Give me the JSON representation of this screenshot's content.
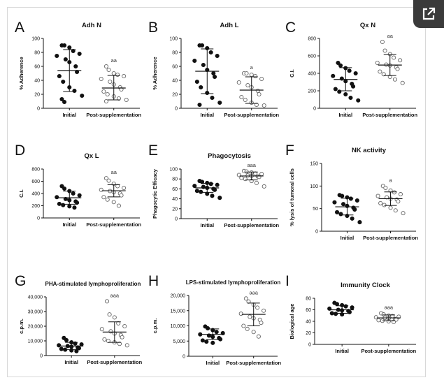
{
  "ui": {
    "external_icon": "external-link-icon"
  },
  "chart_data": [
    {
      "type": "scatter",
      "letter": "A",
      "title": "Adh N",
      "ylabel": "% Adherence",
      "ylim": [
        0,
        100
      ],
      "yticks": [
        "0",
        "20",
        "40",
        "60",
        "80",
        "100"
      ],
      "categories": [
        "Initial",
        "Post-supplementation"
      ],
      "annotation": "aa",
      "groups": [
        {
          "name": "Initial",
          "filled": true,
          "mean": 54,
          "sd_low": 24,
          "sd_high": 84,
          "values": [
            90,
            90,
            87,
            82,
            78,
            75,
            70,
            66,
            60,
            52,
            46,
            38,
            30,
            25,
            18,
            13,
            9
          ]
        },
        {
          "name": "Post-supplementation",
          "filled": false,
          "mean": 29,
          "sd_low": 12,
          "sd_high": 47,
          "values": [
            60,
            55,
            50,
            48,
            46,
            42,
            38,
            34,
            30,
            27,
            24,
            20,
            17,
            14,
            12,
            10
          ]
        }
      ]
    },
    {
      "type": "scatter",
      "letter": "B",
      "title": "Adh L",
      "ylabel": "% Adherence",
      "ylim": [
        0,
        100
      ],
      "yticks": [
        "0",
        "20",
        "40",
        "60",
        "80",
        "100"
      ],
      "categories": [
        "Initial",
        "Post-supplementation"
      ],
      "annotation": "a",
      "groups": [
        {
          "name": "Initial",
          "filled": true,
          "mean": 53,
          "sd_low": 21,
          "sd_high": 85,
          "values": [
            90,
            90,
            86,
            80,
            75,
            68,
            62,
            55,
            50,
            45,
            38,
            30,
            22,
            15,
            8,
            5
          ]
        },
        {
          "name": "Post-supplementation",
          "filled": false,
          "mean": 26,
          "sd_low": 7,
          "sd_high": 45,
          "values": [
            50,
            50,
            48,
            46,
            42,
            37,
            33,
            30,
            25,
            20,
            16,
            12,
            8,
            5,
            4
          ]
        }
      ]
    },
    {
      "type": "scatter",
      "letter": "C",
      "title": "Qx N",
      "ylabel": "C.I.",
      "ylim": [
        0,
        800
      ],
      "yticks": [
        "0",
        "200",
        "400",
        "600",
        "800"
      ],
      "categories": [
        "Initial",
        "Post-supplementation"
      ],
      "annotation": "aa",
      "groups": [
        {
          "name": "Initial",
          "filled": true,
          "mean": 330,
          "sd_low": 200,
          "sd_high": 465,
          "values": [
            520,
            490,
            460,
            430,
            400,
            370,
            340,
            310,
            280,
            250,
            220,
            190,
            160,
            120,
            90
          ]
        },
        {
          "name": "Post-supplementation",
          "filled": false,
          "mean": 495,
          "sd_low": 375,
          "sd_high": 615,
          "values": [
            760,
            660,
            620,
            580,
            550,
            520,
            500,
            490,
            470,
            450,
            420,
            390,
            360,
            330,
            290
          ]
        }
      ]
    },
    {
      "type": "scatter",
      "letter": "D",
      "title": "Qx L",
      "ylabel": "C.I.",
      "ylim": [
        0,
        800
      ],
      "yticks": [
        "0",
        "200",
        "400",
        "600",
        "800"
      ],
      "categories": [
        "Initial",
        "Post-supplementation"
      ],
      "annotation": "aa",
      "groups": [
        {
          "name": "Initial",
          "filled": true,
          "mean": 330,
          "sd_low": 225,
          "sd_high": 440,
          "values": [
            520,
            480,
            440,
            400,
            370,
            340,
            310,
            290,
            270,
            250,
            230,
            210,
            190,
            170
          ]
        },
        {
          "name": "Post-supplementation",
          "filled": false,
          "mean": 445,
          "sd_low": 345,
          "sd_high": 545,
          "values": [
            650,
            610,
            560,
            520,
            490,
            460,
            440,
            420,
            400,
            370,
            340,
            300,
            260,
            200
          ]
        }
      ]
    },
    {
      "type": "scatter",
      "letter": "E",
      "title": "Phagocytosis",
      "ylabel": "Phagocytic Efficacy",
      "ylim": [
        0,
        100
      ],
      "yticks": [
        "0",
        "20",
        "40",
        "60",
        "80",
        "100"
      ],
      "categories": [
        "Initial",
        "Post-supplementation"
      ],
      "annotation": "aaa",
      "groups": [
        {
          "name": "Initial",
          "filled": true,
          "mean": 62,
          "sd_low": 53,
          "sd_high": 71,
          "values": [
            76,
            74,
            72,
            70,
            68,
            66,
            64,
            62,
            60,
            58,
            56,
            54,
            50,
            46,
            42
          ]
        },
        {
          "name": "Post-supplementation",
          "filled": false,
          "mean": 86,
          "sd_low": 78,
          "sd_high": 94,
          "values": [
            96,
            95,
            93,
            91,
            90,
            88,
            87,
            86,
            85,
            84,
            82,
            80,
            76,
            72,
            65
          ]
        }
      ]
    },
    {
      "type": "scatter",
      "letter": "F",
      "title": "NK activity",
      "ylabel": "% lysis of tumoral cells",
      "ylim": [
        0,
        150
      ],
      "yticks": [
        "0",
        "50",
        "100",
        "150"
      ],
      "categories": [
        "Initial",
        "Post-supplementation"
      ],
      "annotation": "a",
      "groups": [
        {
          "name": "Initial",
          "filled": true,
          "mean": 54,
          "sd_low": 36,
          "sd_high": 73,
          "values": [
            80,
            78,
            75,
            72,
            68,
            64,
            60,
            56,
            52,
            48,
            42,
            38,
            34,
            28,
            20
          ]
        },
        {
          "name": "Post-supplementation",
          "filled": false,
          "mean": 72,
          "sd_low": 57,
          "sd_high": 87,
          "values": [
            100,
            96,
            90,
            86,
            82,
            78,
            75,
            72,
            70,
            66,
            62,
            58,
            52,
            46,
            40
          ]
        }
      ]
    },
    {
      "type": "scatter",
      "letter": "G",
      "title": "PHA-stimulated lymphoproliferation",
      "ylabel": "c.p.m.",
      "ylim": [
        0,
        40000
      ],
      "yticks": [
        "0",
        "10,000",
        "20,000",
        "30,000",
        "40,000"
      ],
      "categories": [
        "Initial",
        "Post-supplementation"
      ],
      "annotation": "aaa",
      "groups": [
        {
          "name": "Initial",
          "filled": true,
          "mean": 6500,
          "sd_low": 4000,
          "sd_high": 9000,
          "values": [
            12000,
            10500,
            9000,
            8200,
            7600,
            7000,
            6500,
            6000,
            5500,
            5000,
            4500,
            4000,
            3500,
            3000
          ]
        },
        {
          "name": "Post-supplementation",
          "filled": false,
          "mean": 16000,
          "sd_low": 9000,
          "sd_high": 23000,
          "values": [
            37000,
            28000,
            26000,
            22000,
            20000,
            18000,
            16500,
            15000,
            14000,
            12500,
            11000,
            10000,
            9000,
            8000,
            7000
          ]
        }
      ]
    },
    {
      "type": "scatter",
      "letter": "H",
      "title": "LPS-stimulated lymphoproliferation",
      "ylabel": "c.p.m.",
      "ylim": [
        0,
        20000
      ],
      "yticks": [
        "0",
        "5,000",
        "10,000",
        "15,000",
        "20,000"
      ],
      "categories": [
        "Initial",
        "Post-supplementation"
      ],
      "annotation": "aaa",
      "groups": [
        {
          "name": "Initial",
          "filled": true,
          "mean": 7200,
          "sd_low": 5500,
          "sd_high": 9000,
          "values": [
            9800,
            9200,
            8600,
            8000,
            7600,
            7200,
            6800,
            6400,
            6000,
            5600,
            5200,
            4800,
            4400
          ]
        },
        {
          "name": "Post-supplementation",
          "filled": false,
          "mean": 13800,
          "sd_low": 10000,
          "sd_high": 17500,
          "values": [
            19000,
            18000,
            17000,
            16000,
            15000,
            14000,
            13000,
            12500,
            12000,
            11000,
            10000,
            9000,
            8000,
            6500
          ]
        }
      ]
    },
    {
      "type": "scatter",
      "letter": "I",
      "title": "Immunity Clock",
      "ylabel": "Biological age",
      "ylim": [
        0,
        80
      ],
      "yticks": [
        "0",
        "20",
        "40",
        "60",
        "80"
      ],
      "categories": [
        "Initial",
        "Post-supplementation"
      ],
      "annotation": "aaa",
      "groups": [
        {
          "name": "Initial",
          "filled": true,
          "mean": 60,
          "sd_low": 54,
          "sd_high": 67,
          "values": [
            72,
            70,
            68,
            66,
            64,
            62,
            60,
            59,
            58,
            56,
            54,
            53,
            52
          ]
        },
        {
          "name": "Post-supplementation",
          "filled": false,
          "mean": 46,
          "sd_low": 41,
          "sd_high": 51,
          "values": [
            54,
            52,
            50,
            49,
            48,
            47,
            46,
            45,
            44,
            43,
            42,
            41,
            40,
            39
          ]
        }
      ]
    }
  ]
}
